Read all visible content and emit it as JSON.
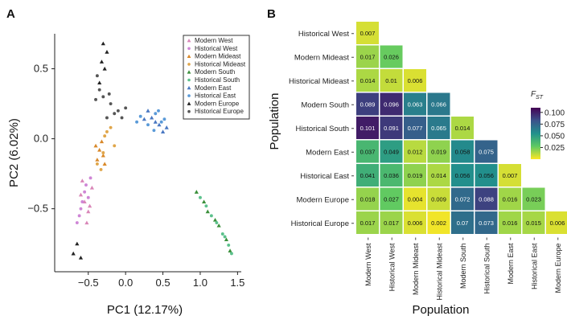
{
  "panels": {
    "a": "A",
    "b": "B"
  },
  "chart_data": [
    {
      "type": "scatter",
      "panel": "A",
      "xlabel": "PC1 (12.17%)",
      "ylabel": "PC2 (6.02%)",
      "xlim": [
        -0.95,
        1.55
      ],
      "ylim": [
        -0.95,
        0.75
      ],
      "xticks": [
        -0.5,
        0.0,
        0.5,
        1.0,
        1.5
      ],
      "xtick_labels": [
        "−0.5",
        "0.0",
        "0.5",
        "1.0",
        "1.5"
      ],
      "yticks": [
        -0.5,
        0.0,
        0.5
      ],
      "ytick_labels": [
        "−0.5",
        "0.0",
        "0.5"
      ],
      "grid": false,
      "legend_position": "top-right",
      "series": [
        {
          "name": "Modern West",
          "color": "#d986b8",
          "marker": "triangle",
          "points": [
            [
              -0.55,
              -0.45
            ],
            [
              -0.5,
              -0.52
            ],
            [
              -0.6,
              -0.4
            ],
            [
              -0.45,
              -0.35
            ],
            [
              -0.52,
              -0.6
            ],
            [
              -0.48,
              -0.48
            ],
            [
              -0.58,
              -0.3
            ]
          ]
        },
        {
          "name": "Historical West",
          "color": "#cf86d6",
          "marker": "circle",
          "points": [
            [
              -0.6,
              -0.5
            ],
            [
              -0.55,
              -0.38
            ],
            [
              -0.5,
              -0.42
            ],
            [
              -0.62,
              -0.55
            ],
            [
              -0.47,
              -0.28
            ],
            [
              -0.58,
              -0.45
            ],
            [
              -0.53,
              -0.33
            ],
            [
              -0.65,
              -0.6
            ]
          ]
        },
        {
          "name": "Modern Mideast",
          "color": "#d9892a",
          "marker": "triangle",
          "points": [
            [
              -0.35,
              -0.08
            ],
            [
              -0.3,
              -0.12
            ],
            [
              -0.4,
              -0.05
            ],
            [
              -0.28,
              -0.18
            ],
            [
              -0.38,
              -0.15
            ],
            [
              -0.32,
              -0.02
            ]
          ]
        },
        {
          "name": "Historical Mideast",
          "color": "#e0a64a",
          "marker": "circle",
          "points": [
            [
              -0.3,
              -0.1
            ],
            [
              -0.25,
              0.05
            ],
            [
              -0.38,
              -0.18
            ],
            [
              -0.2,
              0.08
            ],
            [
              -0.33,
              -0.22
            ],
            [
              -0.15,
              -0.05
            ],
            [
              -0.28,
              0.02
            ]
          ]
        },
        {
          "name": "Modern South",
          "color": "#3a8f3a",
          "marker": "triangle",
          "points": [
            [
              0.95,
              -0.38
            ],
            [
              1.1,
              -0.52
            ],
            [
              1.25,
              -0.62
            ],
            [
              1.35,
              -0.72
            ],
            [
              1.05,
              -0.45
            ],
            [
              1.2,
              -0.58
            ],
            [
              1.4,
              -0.8
            ]
          ]
        },
        {
          "name": "Historical South",
          "color": "#5cc18c",
          "marker": "circle",
          "points": [
            [
              1.0,
              -0.42
            ],
            [
              1.15,
              -0.55
            ],
            [
              1.3,
              -0.68
            ],
            [
              1.38,
              -0.76
            ],
            [
              1.08,
              -0.48
            ],
            [
              1.22,
              -0.6
            ],
            [
              1.33,
              -0.7
            ],
            [
              1.42,
              -0.82
            ]
          ]
        },
        {
          "name": "Modern East",
          "color": "#4a78c2",
          "marker": "triangle",
          "points": [
            [
              0.35,
              0.15
            ],
            [
              0.45,
              0.1
            ],
            [
              0.5,
              0.05
            ],
            [
              0.3,
              0.2
            ],
            [
              0.4,
              0.12
            ],
            [
              0.55,
              0.08
            ],
            [
              0.25,
              0.14
            ]
          ]
        },
        {
          "name": "Historical East",
          "color": "#5a9ad8",
          "marker": "circle",
          "points": [
            [
              0.4,
              0.18
            ],
            [
              0.2,
              0.16
            ],
            [
              0.48,
              0.12
            ],
            [
              0.38,
              0.06
            ],
            [
              0.52,
              0.14
            ],
            [
              0.3,
              0.1
            ],
            [
              0.44,
              0.2
            ],
            [
              0.15,
              0.12
            ]
          ]
        },
        {
          "name": "Modern Europe",
          "color": "#222222",
          "marker": "triangle",
          "points": [
            [
              -0.3,
              0.68
            ],
            [
              -0.25,
              0.62
            ],
            [
              -0.32,
              0.55
            ],
            [
              -0.7,
              -0.82
            ],
            [
              -0.65,
              -0.75
            ],
            [
              -0.6,
              -0.85
            ],
            [
              -0.35,
              0.4
            ],
            [
              -0.28,
              0.5
            ]
          ]
        },
        {
          "name": "Historical Europe",
          "color": "#555555",
          "marker": "circle",
          "points": [
            [
              -0.35,
              0.35
            ],
            [
              -0.3,
              0.3
            ],
            [
              -0.2,
              0.25
            ],
            [
              -0.1,
              0.2
            ],
            [
              0.0,
              0.22
            ],
            [
              -0.25,
              0.15
            ],
            [
              -0.4,
              0.28
            ],
            [
              -0.15,
              0.18
            ],
            [
              -0.38,
              0.45
            ],
            [
              -0.05,
              0.15
            ],
            [
              -0.22,
              0.32
            ]
          ]
        }
      ]
    },
    {
      "type": "heatmap",
      "panel": "B",
      "xlabel": "Population",
      "ylabel": "Population",
      "colorbar_title": "F",
      "colorbar_subscript": "ST",
      "colorbar_range": [
        0.0,
        0.11
      ],
      "colorbar_ticks": [
        0.1,
        0.075,
        0.05,
        0.025
      ],
      "colorbar_tick_labels": [
        "0.100",
        "0.075",
        "0.050",
        "0.025"
      ],
      "rows": [
        "Historical West",
        "Modern Mideast",
        "Historical Mideast",
        "Modern South",
        "Historical South",
        "Modern East",
        "Historical East",
        "Modern Europe",
        "Historical Europe"
      ],
      "columns": [
        "Modern West",
        "Historical West",
        "Modern Mideast",
        "Historical Mideast",
        "Modern South",
        "Historical South",
        "Modern East",
        "Historical East",
        "Modern Europe"
      ],
      "values": [
        [
          "0.007"
        ],
        [
          "0.017",
          "0.026"
        ],
        [
          "0.014",
          "0.01",
          "0.006"
        ],
        [
          "0.089",
          "0.096",
          "0.063",
          "0.066"
        ],
        [
          "0.101",
          "0.091",
          "0.077",
          "0.065",
          "0.014"
        ],
        [
          "0.037",
          "0.049",
          "0.012",
          "0.019",
          "0.058",
          "0.075"
        ],
        [
          "0.041",
          "0.036",
          "0.019",
          "0.014",
          "0.056",
          "0.056",
          "0.007"
        ],
        [
          "0.018",
          "0.027",
          "0.004",
          "0.009",
          "0.072",
          "0.088",
          "0.016",
          "0.023"
        ],
        [
          "0.017",
          "0.017",
          "0.006",
          "0.002",
          "0.07",
          "0.073",
          "0.016",
          "0.015",
          "0.006"
        ]
      ]
    }
  ]
}
